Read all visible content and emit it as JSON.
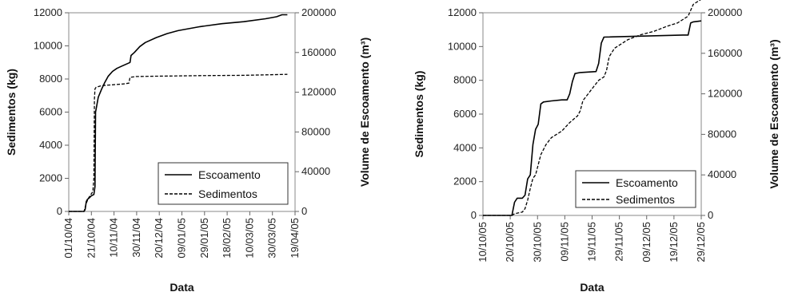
{
  "chart_data": [
    {
      "type": "line",
      "xlabel": "Data",
      "ylabel_left": "Sedimentos (kg)",
      "ylabel_right": "Volume de Escoamento (m³)",
      "x_ticks": [
        "01/10/04",
        "21/10/04",
        "10/11/04",
        "30/11/04",
        "20/12/04",
        "09/01/05",
        "29/01/05",
        "18/02/05",
        "10/03/05",
        "30/03/05",
        "19/04/05"
      ],
      "x_range_days": [
        0,
        207
      ],
      "y_left_ticks": [
        "0",
        "2000",
        "4000",
        "6000",
        "8000",
        "10000",
        "12000"
      ],
      "y_left_range": [
        0,
        12000
      ],
      "y_right_ticks": [
        "0",
        "40000",
        "80000",
        "120000",
        "160000",
        "200000"
      ],
      "y_right_range": [
        0,
        200000
      ],
      "grid": false,
      "legend_position": "bottom-right",
      "series": [
        {
          "name": "Escoamento",
          "axis": "right",
          "style": "solid",
          "points": [
            [
              0,
              0
            ],
            [
              14,
              0
            ],
            [
              15,
              2000
            ],
            [
              16,
              10000
            ],
            [
              17,
              12000
            ],
            [
              19,
              14000
            ],
            [
              21,
              16000
            ],
            [
              23,
              17000
            ],
            [
              24,
              25000
            ],
            [
              24.5,
              100000
            ],
            [
              25,
              103000
            ],
            [
              27,
              115000
            ],
            [
              30,
              123000
            ],
            [
              33,
              130000
            ],
            [
              36,
              136000
            ],
            [
              40,
              141000
            ],
            [
              44,
              144000
            ],
            [
              48,
              146000
            ],
            [
              56,
              150000
            ],
            [
              57,
              157000
            ],
            [
              60,
              160000
            ],
            [
              65,
              166000
            ],
            [
              70,
              170000
            ],
            [
              80,
              175000
            ],
            [
              90,
              179000
            ],
            [
              100,
              182000
            ],
            [
              120,
              186000
            ],
            [
              140,
              189000
            ],
            [
              160,
              191000
            ],
            [
              180,
              194000
            ],
            [
              190,
              196000
            ],
            [
              195,
              198000
            ],
            [
              200,
              198000
            ]
          ]
        },
        {
          "name": "Sedimentos",
          "axis": "left",
          "style": "dashed",
          "points": [
            [
              0,
              0
            ],
            [
              14,
              0
            ],
            [
              16,
              500
            ],
            [
              18,
              800
            ],
            [
              22,
              1200
            ],
            [
              23,
              2000
            ],
            [
              23.5,
              6800
            ],
            [
              24,
              7400
            ],
            [
              25,
              7500
            ],
            [
              30,
              7600
            ],
            [
              40,
              7650
            ],
            [
              50,
              7700
            ],
            [
              55,
              7750
            ],
            [
              56,
              8100
            ],
            [
              62,
              8150
            ],
            [
              80,
              8170
            ],
            [
              120,
              8200
            ],
            [
              160,
              8220
            ],
            [
              200,
              8280
            ]
          ]
        }
      ]
    },
    {
      "type": "line",
      "xlabel": "Data",
      "ylabel_left": "Sedimentos (kg)",
      "ylabel_right": "Volume de Escoamento (m³)",
      "x_ticks": [
        "10/10/05",
        "20/10/05",
        "30/10/05",
        "09/11/05",
        "19/11/05",
        "29/11/05",
        "09/12/05",
        "19/12/05",
        "29/12/05"
      ],
      "x_range_days": [
        0,
        83
      ],
      "y_left_ticks": [
        "0",
        "2000",
        "4000",
        "6000",
        "8000",
        "10000",
        "12000"
      ],
      "y_left_range": [
        0,
        12000
      ],
      "y_right_ticks": [
        "0",
        "40000",
        "80000",
        "120000",
        "160000",
        "200000"
      ],
      "y_right_range": [
        0,
        200000
      ],
      "grid": false,
      "legend_position": "bottom-right",
      "series": [
        {
          "name": "Escoamento",
          "axis": "right",
          "style": "solid",
          "points": [
            [
              0,
              0
            ],
            [
              11,
              0
            ],
            [
              12,
              13000
            ],
            [
              13,
              17000
            ],
            [
              15,
              17000
            ],
            [
              16,
              20000
            ],
            [
              17,
              36000
            ],
            [
              18,
              40000
            ],
            [
              19,
              70000
            ],
            [
              20,
              85000
            ],
            [
              21,
              90000
            ],
            [
              22,
              110000
            ],
            [
              23,
              112000
            ],
            [
              26,
              113000
            ],
            [
              30,
              114000
            ],
            [
              32,
              114000
            ],
            [
              33,
              120000
            ],
            [
              34,
              132000
            ],
            [
              35,
              140000
            ],
            [
              37,
              141000
            ],
            [
              43,
              142000
            ],
            [
              44,
              150000
            ],
            [
              45,
              170000
            ],
            [
              46,
              176000
            ],
            [
              76,
              178000
            ],
            [
              78,
              178000
            ],
            [
              79,
              190000
            ],
            [
              80,
              191000
            ],
            [
              83,
              192000
            ]
          ]
        },
        {
          "name": "Sedimentos",
          "axis": "left",
          "style": "dashed",
          "points": [
            [
              0,
              0
            ],
            [
              11,
              0
            ],
            [
              12,
              100
            ],
            [
              15,
              200
            ],
            [
              16,
              400
            ],
            [
              17,
              900
            ],
            [
              18,
              1600
            ],
            [
              19,
              2200
            ],
            [
              20,
              2400
            ],
            [
              21,
              3000
            ],
            [
              22,
              3600
            ],
            [
              24,
              4200
            ],
            [
              26,
              4600
            ],
            [
              30,
              5000
            ],
            [
              33,
              5500
            ],
            [
              36,
              5900
            ],
            [
              37,
              6200
            ],
            [
              38,
              6800
            ],
            [
              40,
              7200
            ],
            [
              42,
              7600
            ],
            [
              44,
              8000
            ],
            [
              46,
              8200
            ],
            [
              47,
              8600
            ],
            [
              48,
              9400
            ],
            [
              50,
              9900
            ],
            [
              55,
              10400
            ],
            [
              60,
              10700
            ],
            [
              65,
              10900
            ],
            [
              70,
              11200
            ],
            [
              74,
              11400
            ],
            [
              76,
              11600
            ],
            [
              78,
              11800
            ],
            [
              80,
              12500
            ],
            [
              83,
              12800
            ]
          ]
        }
      ]
    }
  ]
}
